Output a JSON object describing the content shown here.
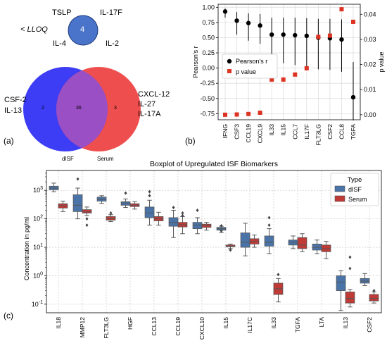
{
  "panel_a": {
    "label": "(a)",
    "lloq_label": "< LLOQ",
    "lloq_items": [
      "TSLP",
      "IL-17F",
      "IL-4",
      "IL-2"
    ],
    "lloq_count": "4",
    "left_items": [
      "CSF-2",
      "IL-13"
    ],
    "right_items": [
      "CXCL-12",
      "IL-27",
      "IL-17A"
    ],
    "venn_left_count": "2",
    "venn_overlap_count": "36",
    "venn_right_count": "3",
    "venn_left_label": "dISF",
    "venn_right_label": "Serum",
    "colors": {
      "left": "#3d3df5",
      "right": "#ee4444",
      "overlap": "#9a4fc4",
      "small": "#4a74c9"
    }
  },
  "panel_b": {
    "label": "(b)"
  },
  "panel_c": {
    "label": "(c)"
  },
  "chart_data": [
    {
      "type": "scatter",
      "categories": [
        "IFNG",
        "CSF3",
        "CCL19",
        "CXCL9",
        "IL33",
        "IL15",
        "CCL7",
        "IL17F",
        "FLT3LG",
        "CSF2",
        "CCL8",
        "TGFA"
      ],
      "series": [
        {
          "name": "Pearson's r",
          "axis": "left",
          "color": "#000000",
          "values": [
            0.93,
            0.78,
            0.74,
            0.7,
            0.55,
            0.55,
            0.54,
            0.53,
            0.5,
            0.49,
            0.47,
            -0.48
          ],
          "ci_low": [
            0.83,
            0.55,
            0.45,
            0.4,
            0.08,
            0.08,
            0.05,
            0.03,
            -0.02,
            -0.03,
            -0.06,
            -0.86
          ],
          "ci_high": [
            0.98,
            0.92,
            0.9,
            0.89,
            0.83,
            0.83,
            0.83,
            0.82,
            0.81,
            0.81,
            0.8,
            0.1
          ]
        },
        {
          "name": "p value",
          "axis": "right",
          "color": "#dd3322",
          "values": [
            0.0,
            0.0001,
            0.0003,
            0.0008,
            0.014,
            0.014,
            0.016,
            0.0185,
            0.031,
            0.0315,
            0.042,
            0.037
          ]
        }
      ],
      "ylabel": "Pearson's r",
      "ylim": [
        -0.85,
        1.05
      ],
      "yticks": [
        "1.00",
        "0.75",
        "0.50",
        "0.25",
        "0.00",
        "-0.25",
        "-0.50",
        "-0.75"
      ],
      "ylabel_right": "p value",
      "ylim_right": [
        -0.002,
        0.044
      ],
      "yticks_right": [
        "0.04",
        "0.03",
        "0.02",
        "0.01",
        "0.00"
      ],
      "legend": {
        "position": "center-left",
        "items": [
          "Pearson's r",
          "p value"
        ]
      },
      "grid": true
    },
    {
      "type": "box",
      "title": "Boxplot of Upregulated ISF Biomarkers",
      "ylabel": "Concentration in pg/ml",
      "yscale": "log",
      "ylim": [
        0.05,
        5000
      ],
      "yticks": [
        "10^3",
        "10^2",
        "10^1",
        "10^0",
        "10^-1"
      ],
      "legend": {
        "title": "Type",
        "position": "top-right",
        "items": [
          "dISF",
          "Serum"
        ]
      },
      "colors": {
        "dISF": "#4a74a8",
        "Serum": "#c03a36"
      },
      "categories": [
        "IL18",
        "MMP12",
        "FLT3LG",
        "HGF",
        "CCL13",
        "CCL19",
        "CXCL10",
        "IL15",
        "IL17C",
        "IL33",
        "TGFA",
        "LTA",
        "IL13",
        "CSF2"
      ],
      "series": [
        {
          "name": "dISF",
          "boxes": [
            {
              "min": 900,
              "q1": 1050,
              "median": 1200,
              "q3": 1400,
              "max": 1800,
              "outliers": []
            },
            {
              "min": 100,
              "q1": 180,
              "median": 300,
              "q3": 700,
              "max": 1200,
              "outliers": [
                2500
              ]
            },
            {
              "min": 350,
              "q1": 420,
              "median": 480,
              "q3": 580,
              "max": 650,
              "outliers": []
            },
            {
              "min": 250,
              "q1": 300,
              "median": 360,
              "q3": 400,
              "max": 500,
              "outliers": [
                800
              ]
            },
            {
              "min": 60,
              "q1": 110,
              "median": 160,
              "q3": 260,
              "max": 450,
              "outliers": [
                650,
                900
              ]
            },
            {
              "min": 22,
              "q1": 55,
              "median": 75,
              "q3": 110,
              "max": 200,
              "outliers": [
                250
              ]
            },
            {
              "min": 30,
              "q1": 45,
              "median": 60,
              "q3": 75,
              "max": 110,
              "outliers": [
                200
              ]
            },
            {
              "min": 33,
              "q1": 40,
              "median": 45,
              "q3": 50,
              "max": 55,
              "outliers": [
                38,
                57
              ]
            },
            {
              "min": 5,
              "q1": 10,
              "median": 15,
              "q3": 32,
              "max": 70,
              "outliers": []
            },
            {
              "min": 6,
              "q1": 11,
              "median": 15,
              "q3": 25,
              "max": 45,
              "outliers": [
                60,
                110
              ]
            },
            {
              "min": 9,
              "q1": 12,
              "median": 15,
              "q3": 18,
              "max": 25,
              "outliers": []
            },
            {
              "min": 6,
              "q1": 8,
              "median": 10,
              "q3": 13,
              "max": 18,
              "outliers": []
            },
            {
              "min": 0.06,
              "q1": 0.3,
              "median": 0.6,
              "q3": 1.0,
              "max": 1.5,
              "outliers": []
            },
            {
              "min": 0.45,
              "q1": 0.55,
              "median": 0.65,
              "q3": 0.8,
              "max": 1.2,
              "outliers": []
            }
          ]
        },
        {
          "name": "Serum",
          "boxes": [
            {
              "min": 180,
              "q1": 240,
              "median": 290,
              "q3": 340,
              "max": 420,
              "outliers": []
            },
            {
              "min": 130,
              "q1": 160,
              "median": 175,
              "q3": 210,
              "max": 260,
              "outliers": [
                100,
                60
              ]
            },
            {
              "min": 80,
              "q1": 90,
              "median": 100,
              "q3": 120,
              "max": 140,
              "outliers": [
                160
              ]
            },
            {
              "min": 220,
              "q1": 270,
              "median": 300,
              "q3": 340,
              "max": 400,
              "outliers": []
            },
            {
              "min": 60,
              "q1": 85,
              "median": 100,
              "q3": 120,
              "max": 170,
              "outliers": []
            },
            {
              "min": 30,
              "q1": 52,
              "median": 62,
              "q3": 75,
              "max": 120,
              "outliers": [
                130,
                160
              ]
            },
            {
              "min": 40,
              "q1": 50,
              "median": 58,
              "q3": 65,
              "max": 75,
              "outliers": []
            },
            {
              "min": 9,
              "q1": 10.5,
              "median": 11,
              "q3": 12,
              "max": 13,
              "outliers": [
                8
              ]
            },
            {
              "min": 10,
              "q1": 13,
              "median": 16,
              "q3": 20,
              "max": 27,
              "outliers": []
            },
            {
              "min": 0.12,
              "q1": 0.22,
              "median": 0.35,
              "q3": 0.55,
              "max": 0.8,
              "outliers": [
                1.1
              ]
            },
            {
              "min": 7,
              "q1": 9,
              "median": 12,
              "q3": 22,
              "max": 30,
              "outliers": []
            },
            {
              "min": 4,
              "q1": 7,
              "median": 9,
              "q3": 12,
              "max": 16,
              "outliers": []
            },
            {
              "min": 0.08,
              "q1": 0.11,
              "median": 0.16,
              "q3": 0.27,
              "max": 0.33,
              "outliers": [
                1.8,
                4.5
              ]
            },
            {
              "min": 0.11,
              "q1": 0.13,
              "median": 0.16,
              "q3": 0.22,
              "max": 0.27,
              "outliers": [
                0.3
              ]
            }
          ]
        }
      ],
      "grid": true
    }
  ]
}
